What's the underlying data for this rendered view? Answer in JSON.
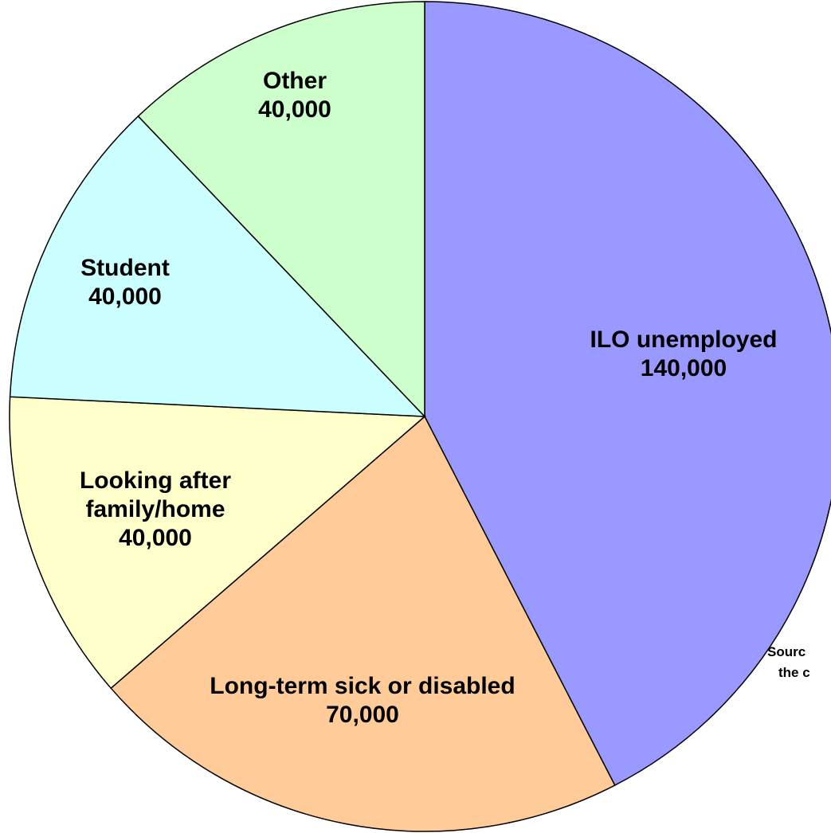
{
  "chart_data": {
    "type": "pie",
    "categories": [
      "ILO unemployed",
      "Long-term sick or disabled",
      "Looking after family/home",
      "Student",
      "Other"
    ],
    "values": [
      140000,
      70000,
      40000,
      40000,
      40000
    ],
    "value_labels": [
      "140,000",
      "70,000",
      "40,000",
      "40,000",
      "40,000"
    ],
    "colors": [
      "#9999ff",
      "#ffcc99",
      "#ffffcc",
      "#ccffff",
      "#ccffcc"
    ],
    "note": [
      "Sourc",
      "the c"
    ]
  }
}
